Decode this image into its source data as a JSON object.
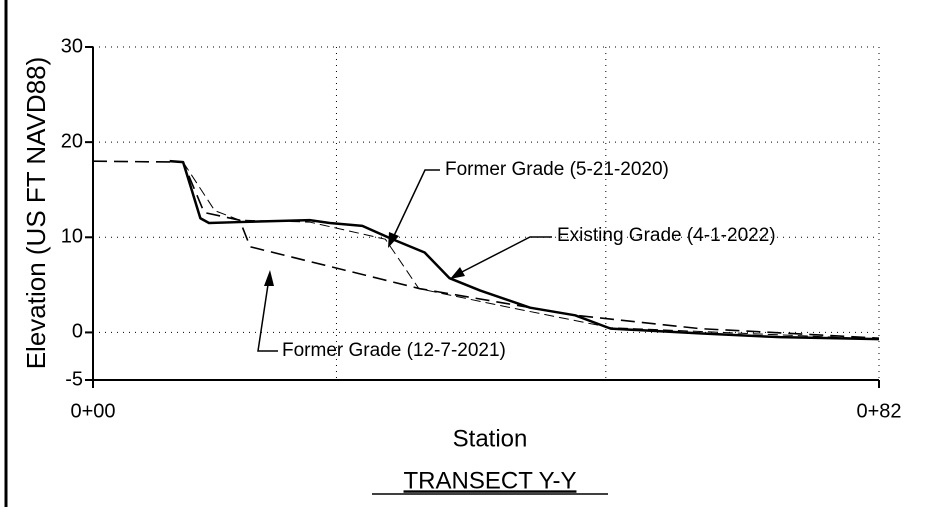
{
  "chart_data": {
    "type": "line",
    "title": "TRANSECT Y-Y",
    "x_label": "Station",
    "y_label": "Elevation (US FT NAVD88)",
    "xlim": [
      0,
      82
    ],
    "ylim": [
      -5,
      30
    ],
    "xticks": [
      {
        "value": 0,
        "label": "0+00"
      },
      {
        "value": 82,
        "label": "0+82"
      }
    ],
    "xgrid": [
      25.4,
      53.5,
      82
    ],
    "yticks": [
      30,
      20,
      10,
      0,
      -5
    ],
    "ygrid": [
      30,
      20,
      10,
      0
    ],
    "grid": true,
    "series": [
      {
        "name": "Existing Grade (4-1-2022)",
        "color": "#000000",
        "line_style": "solid",
        "x": [
          8.0,
          9.4,
          10.2,
          11.2,
          12.1,
          15.3,
          22.6,
          24.7,
          28.1,
          31.0,
          34.6,
          37.2,
          40.4,
          45.6,
          50.3,
          54.0,
          63.3,
          71.7,
          82
        ],
        "values": [
          18.0,
          17.9,
          15.3,
          12.0,
          11.5,
          11.6,
          11.8,
          11.5,
          11.2,
          9.9,
          8.4,
          5.7,
          4.4,
          2.6,
          1.8,
          0.4,
          -0.1,
          -0.5,
          -0.7
        ]
      },
      {
        "name": "Former Grade (5-21-2020)",
        "color": "#000000",
        "line_style": "thin-dashed",
        "x": [
          9.4,
          12.7,
          15.3,
          22.6,
          30.5,
          34.0,
          42.6,
          54.0,
          82
        ],
        "values": [
          17.9,
          12.8,
          11.8,
          11.6,
          9.8,
          4.6,
          2.8,
          0.5,
          -0.7
        ]
      },
      {
        "name": "Former Grade (12-7-2021)",
        "color": "#000000",
        "line_style": "dashed",
        "x": [
          0,
          9.4,
          11.6,
          15.3,
          16.4,
          34.1,
          50.3,
          63.3,
          82
        ],
        "values": [
          18.0,
          17.9,
          12.6,
          11.8,
          9.0,
          4.6,
          1.8,
          0.4,
          -0.6
        ]
      }
    ]
  }
}
